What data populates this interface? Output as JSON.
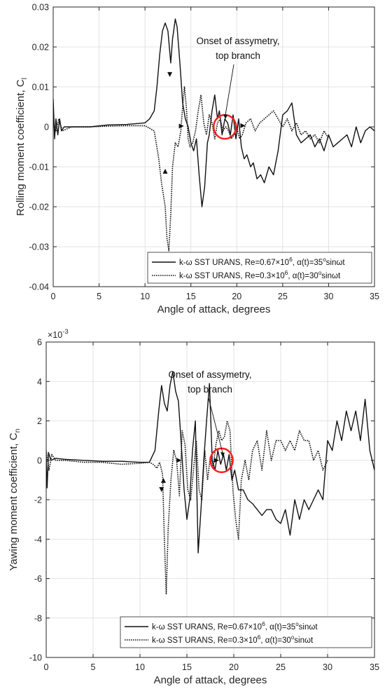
{
  "chart_data": [
    {
      "type": "line",
      "xlabel": "Angle of attack, degrees",
      "ylabel": "Rolling moment coefficient, C",
      "ylabel_sub": "l",
      "xlim": [
        0,
        35
      ],
      "ylim": [
        -0.04,
        0.03
      ],
      "grid": true,
      "xticks": [
        0,
        5,
        10,
        15,
        20,
        25,
        30,
        35
      ],
      "yticks": [
        -0.04,
        -0.03,
        -0.02,
        -0.01,
        0,
        0.01,
        0.02,
        0.03
      ],
      "ytick_labels": [
        "-0.04",
        "-0.03",
        "-0.02",
        "-0.01",
        "0",
        "0.01",
        "0.02",
        "0.03"
      ],
      "annotation": {
        "line1": "Onset of assymetry,",
        "line2": "top branch",
        "target": [
          18.7,
          0.0
        ]
      },
      "highlight_circle": {
        "x": 18.7,
        "y": 0.0,
        "color": "#ff1a1a"
      },
      "legend": {
        "position": "bottom-right",
        "entries": [
          {
            "style": "solid",
            "model": "k-ω SST URANS, Re=0.67×10",
            "exp": "6",
            "mid": ", α(t)=35",
            "deg": "o",
            "tail": "sinωt"
          },
          {
            "style": "dotted",
            "model": "k-ω SST URANS, Re=0.3×10",
            "exp": "6",
            "mid": ", α(t)=30",
            "deg": "o",
            "tail": "sinωt"
          }
        ]
      },
      "series": [
        {
          "style": "solid",
          "x": [
            0,
            0.15,
            0.3,
            0.5,
            0.7,
            0.9,
            1.2,
            2,
            4,
            6,
            8,
            10,
            10.5,
            11,
            11.3,
            11.6,
            11.9,
            12.2,
            12.5,
            12.8,
            13.0,
            13.3,
            13.5,
            13.8,
            14.1,
            14.4,
            14.7,
            15.0,
            15.3,
            15.6,
            15.9,
            16.2,
            16.5,
            16.8,
            17.0,
            17.3,
            17.6,
            17.9,
            18.1,
            18.4,
            18.7,
            19.0,
            19.3,
            19.6,
            19.9,
            20.2,
            20.5,
            20.8,
            21.1,
            21.5,
            21.8,
            22.2,
            22.6,
            23.0,
            23.5,
            24.0,
            24.5,
            25.0,
            25.5,
            26.0,
            26.5,
            27.0,
            27.5,
            28.0,
            28.5,
            29.0,
            29.5,
            30.0,
            30.5,
            31.0,
            31.5,
            32.0,
            32.5,
            33.0,
            33.5,
            34.0,
            34.5,
            35.0
          ],
          "y": [
            0.007,
            -0.003,
            0.002,
            -0.002,
            0.002,
            -0.001,
            0,
            0,
            0,
            0.0005,
            0.0006,
            0.001,
            0.002,
            0.004,
            0.01,
            0.018,
            0.024,
            0.026,
            0.024,
            0.016,
            0.022,
            0.027,
            0.025,
            0.016,
            0.006,
            0.002,
            0.0,
            -0.004,
            -0.006,
            -0.003,
            -0.012,
            -0.02,
            -0.015,
            -0.004,
            -0.002,
            0.004,
            0.008,
            0.002,
            0.004,
            -0.002,
            0.002,
            0.001,
            -0.002,
            0.003,
            -0.003,
            0.002,
            -0.005,
            -0.008,
            -0.007,
            -0.01,
            -0.009,
            -0.013,
            -0.012,
            -0.014,
            -0.01,
            -0.012,
            -0.006,
            0.003,
            0.004,
            0.006,
            -0.002,
            -0.004,
            -0.003,
            -0.002,
            -0.005,
            -0.003,
            -0.006,
            -0.002,
            -0.005,
            -0.004,
            -0.003,
            -0.002,
            -0.005,
            0.0,
            -0.004,
            -0.001,
            0.0,
            -0.001
          ]
        },
        {
          "style": "dotted",
          "x": [
            0,
            0.3,
            0.6,
            1.0,
            2,
            4,
            6,
            8,
            10,
            11.0,
            11.5,
            11.8,
            12.0,
            12.2,
            12.4,
            12.6,
            12.8,
            13.0,
            13.3,
            13.6,
            13.9,
            14.1,
            14.3,
            14.5,
            14.7,
            14.9,
            15.2,
            15.5,
            15.8,
            16.1,
            16.4,
            16.7,
            17.0,
            17.3,
            17.6,
            17.9,
            18.2,
            18.5,
            18.8,
            19.1,
            19.4,
            19.7,
            20.0,
            20.3,
            20.6,
            21.0,
            21.5,
            22.0,
            22.5,
            23.0,
            23.5,
            24.0,
            24.5,
            25.0,
            25.5,
            26.0,
            26.5,
            27.0,
            27.5,
            28.0,
            28.5,
            29.0,
            29.5,
            30.0
          ],
          "y": [
            0.001,
            -0.001,
            0.002,
            -0.001,
            0,
            0,
            0.0002,
            0.0003,
            0.0003,
            -0.001,
            -0.008,
            -0.014,
            -0.017,
            -0.02,
            -0.028,
            -0.031,
            -0.022,
            -0.01,
            -0.004,
            -0.005,
            -0.001,
            0.005,
            0.01,
            0.005,
            -0.003,
            -0.005,
            -0.004,
            -0.001,
            0.004,
            0.008,
            0.001,
            -0.002,
            0.003,
            0.001,
            -0.003,
            0.001,
            0.002,
            -0.001,
            0.0,
            -0.001,
            -0.003,
            -0.002,
            0.0,
            -0.003,
            -0.002,
            0.001,
            0.002,
            -0.001,
            0.001,
            0.002,
            0.003,
            0.004,
            0.002,
            0.0,
            0.002,
            -0.001,
            0.001,
            -0.002,
            -0.001,
            -0.003,
            -0.002,
            -0.004,
            -0.001,
            -0.003
          ]
        }
      ]
    },
    {
      "type": "line",
      "xlabel": "Angle of attack, degrees",
      "ylabel": "Yawing moment coefficient, C",
      "ylabel_sub": "n",
      "exponent_label": "×10",
      "exponent_power": "-3",
      "xlim": [
        0,
        35
      ],
      "ylim": [
        -10,
        6
      ],
      "grid": true,
      "xticks": [
        0,
        5,
        10,
        15,
        20,
        25,
        30,
        35
      ],
      "yticks": [
        -10,
        -8,
        -6,
        -4,
        -2,
        0,
        2,
        4,
        6
      ],
      "ytick_labels": [
        "-10",
        "-8",
        "-6",
        "-4",
        "-2",
        "0",
        "2",
        "4",
        "6"
      ],
      "annotation": {
        "line1": "Onset of assymetry,",
        "line2": "top branch",
        "target": [
          18.7,
          0.0
        ]
      },
      "highlight_circle": {
        "x": 18.7,
        "y": 0.0,
        "color": "#ff1a1a"
      },
      "legend": {
        "position": "bottom-right",
        "entries": [
          {
            "style": "solid",
            "model": "k-ω SST URANS, Re=0.67×10",
            "exp": "6",
            "mid": ", α(t)=35",
            "deg": "o",
            "tail": "sinωt"
          },
          {
            "style": "dotted",
            "model": "k-ω SST URANS, Re=0.3×10",
            "exp": "6",
            "mid": ", α(t)=30",
            "deg": "o",
            "tail": "sinωt"
          }
        ]
      },
      "series": [
        {
          "style": "solid",
          "x": [
            0,
            0.1,
            0.25,
            0.5,
            1,
            2,
            4,
            6,
            8,
            10,
            11,
            11.6,
            12.0,
            12.3,
            12.6,
            12.9,
            13.2,
            13.5,
            13.8,
            14.1,
            14.4,
            14.7,
            15.0,
            15.3,
            15.6,
            15.9,
            16.2,
            16.5,
            16.8,
            17.1,
            17.4,
            17.7,
            18.0,
            18.3,
            18.6,
            18.9,
            19.2,
            19.5,
            19.8,
            20.1,
            20.5,
            21.0,
            21.5,
            22.0,
            22.5,
            23.0,
            23.5,
            24.0,
            24.5,
            25.0,
            25.5,
            26.0,
            26.5,
            27.0,
            27.5,
            28.0,
            28.5,
            29.0,
            29.5,
            30.0,
            30.5,
            31.0,
            31.5,
            32.0,
            32.5,
            33.0,
            33.5,
            34.0,
            34.5,
            35.0
          ],
          "y": [
            0.2,
            -1.4,
            0.4,
            0.0,
            0.1,
            0.05,
            0.0,
            -0.05,
            -0.05,
            -0.1,
            -0.1,
            0.5,
            2.5,
            3.8,
            2.9,
            2.5,
            3.8,
            4.5,
            3.5,
            3.0,
            0.8,
            -1.5,
            -3.0,
            -2.0,
            0.5,
            2.0,
            -4.7,
            -2.5,
            0.0,
            2.0,
            3.9,
            0.0,
            -0.5,
            0.5,
            -0.2,
            0.3,
            -0.5,
            0.3,
            -1.0,
            -0.5,
            -1.5,
            -1.5,
            -2.0,
            -2.2,
            -2.5,
            -2.8,
            -2.5,
            -2.5,
            -3.0,
            -3.2,
            -2.5,
            -3.8,
            -2.0,
            -3.0,
            -2.0,
            -2.5,
            -2.0,
            -1.5,
            -2.0,
            1.0,
            0.5,
            2.0,
            1.0,
            2.5,
            1.5,
            2.5,
            1.0,
            3.1,
            0.5,
            -0.5
          ]
        },
        {
          "style": "dotted",
          "x": [
            0,
            0.3,
            0.6,
            1.0,
            2,
            4,
            6,
            8,
            10,
            11.0,
            11.4,
            11.8,
            12.1,
            12.4,
            12.6,
            12.8,
            13.0,
            13.3,
            13.6,
            13.9,
            14.2,
            14.5,
            14.8,
            15.1,
            15.4,
            15.7,
            16.0,
            16.3,
            16.6,
            16.9,
            17.2,
            17.5,
            17.8,
            18.1,
            18.4,
            18.7,
            19.0,
            19.3,
            19.6,
            19.9,
            20.2,
            20.5,
            20.8,
            21.2,
            21.6,
            22.0,
            22.5,
            23.0,
            23.5,
            24.0,
            24.5,
            25.0,
            25.5,
            26.0,
            26.5,
            27.0,
            27.5,
            28.0,
            28.5,
            29.0,
            29.5,
            30.0
          ],
          "y": [
            0.5,
            -0.5,
            0.3,
            0.0,
            0.0,
            -0.1,
            -0.1,
            -0.2,
            -0.15,
            -0.1,
            -0.2,
            -0.4,
            -0.1,
            -0.7,
            -4.0,
            -6.8,
            -3.5,
            -1.0,
            0.5,
            0.0,
            -1.8,
            1.5,
            0.8,
            -1.5,
            -2.0,
            -0.5,
            1.0,
            -1.5,
            -2.0,
            0.5,
            -1.0,
            0.2,
            -0.3,
            0.8,
            1.5,
            1.0,
            1.2,
            2.0,
            1.5,
            -1.5,
            -3.0,
            -4.0,
            -1.0,
            0.0,
            -1.0,
            0.5,
            1.0,
            -0.5,
            1.5,
            0.0,
            1.0,
            1.0,
            0.5,
            1.0,
            0.5,
            1.5,
            1.0,
            1.0,
            0.0,
            0.5,
            -0.5,
            0.0
          ]
        }
      ]
    }
  ]
}
